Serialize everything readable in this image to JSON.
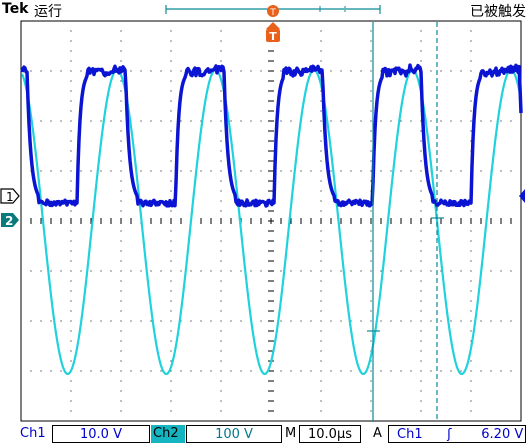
{
  "header": {
    "brand": "Tek",
    "run_state": "运行",
    "trigger_status": "已被触发"
  },
  "markers": {
    "ch1_marker": "1",
    "ch2_marker": "2",
    "trigger_marker": "T"
  },
  "status": {
    "ch1_label": "Ch1",
    "ch1_scale": "10.0 V",
    "ch2_label": "Ch2",
    "ch2_scale": "100 V",
    "timebase_label": "M",
    "timebase": "10.0µs",
    "trigger_label": "A",
    "trigger_source": "Ch1",
    "trigger_slope": "ʃ",
    "trigger_level": "6.20 V"
  },
  "colors": {
    "ch1": "#0a14d2",
    "ch2": "#20d2dc",
    "cursor": "#0a8a96",
    "grid": "#000000"
  }
}
